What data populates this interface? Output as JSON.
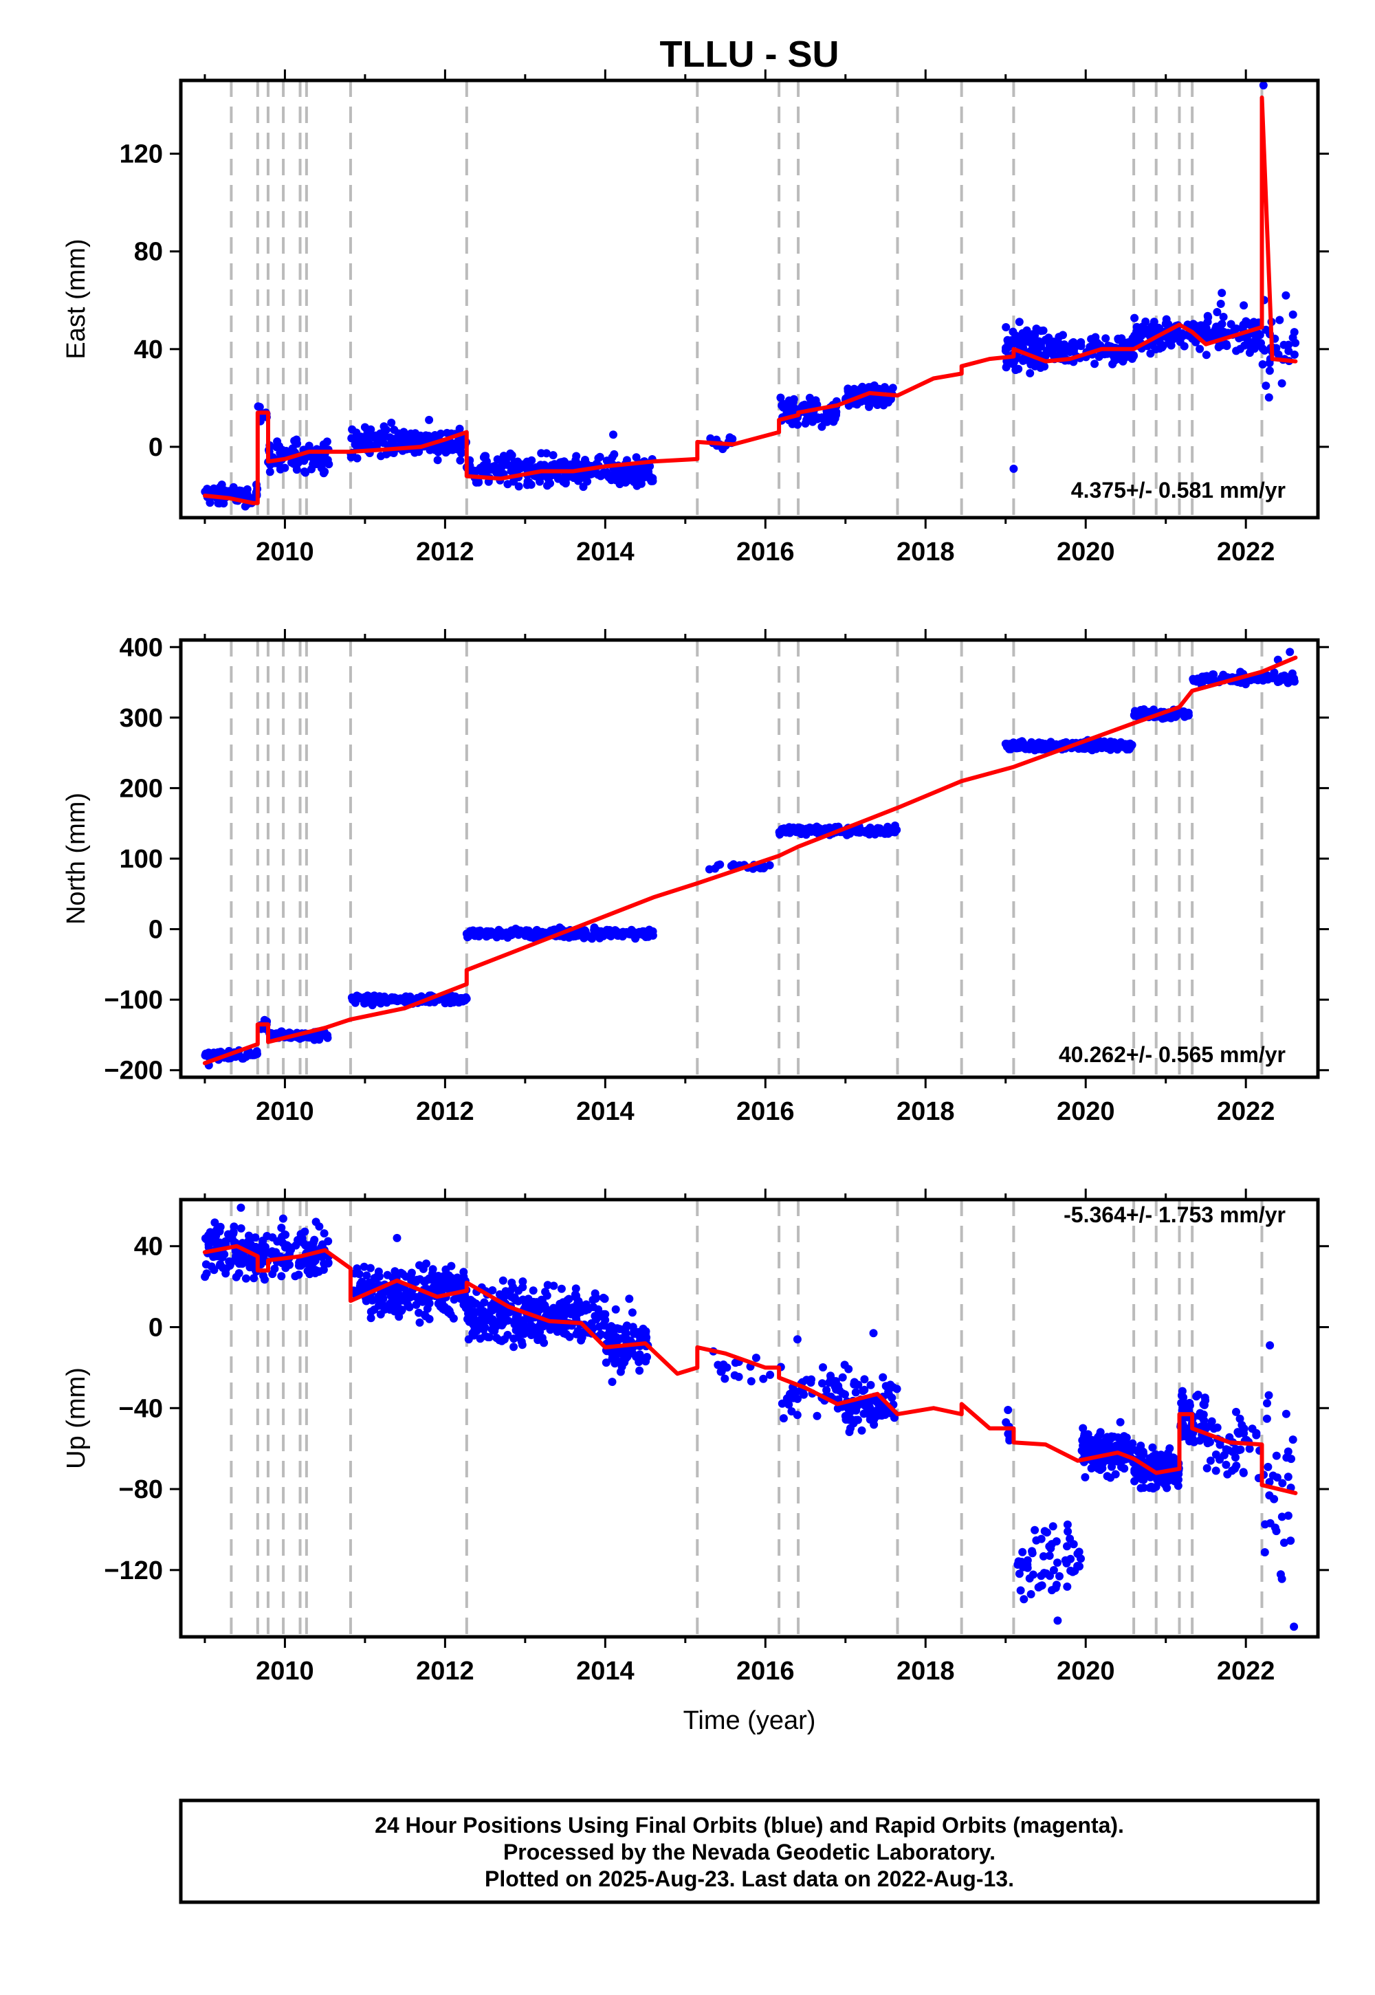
{
  "title": "TLLU - SU",
  "xlabel": "Time (year)",
  "x_tick_labels": [
    "2010",
    "2012",
    "2014",
    "2016",
    "2018",
    "2020",
    "2022"
  ],
  "footer": {
    "line1": "24 Hour Positions Using Final Orbits (blue) and Rapid Orbits (magenta).",
    "line2": "Processed by the Nevada Geodetic Laboratory.",
    "line3": "Plotted on 2025-Aug-23. Last data on 2022-Aug-13."
  },
  "colors": {
    "observations": "#0000ff",
    "model": "#ff0000",
    "steps": "#bbbbbb",
    "frame": "#000000"
  },
  "chart_data": [
    {
      "type": "scatter",
      "ylabel": "East (mm)",
      "rate_text": "4.375+/- 0.581 mm/yr",
      "xlim": [
        2008.7,
        2022.9
      ],
      "ylim": [
        -29,
        150
      ],
      "yticks": [
        0,
        40,
        80,
        120
      ],
      "ytick_labels": [
        "0",
        "40",
        "80",
        "120"
      ],
      "grid": false,
      "step_lines": [
        2009.33,
        2009.66,
        2009.79,
        2009.98,
        2010.19,
        2010.27,
        2010.82,
        2012.27,
        2015.15,
        2016.17,
        2016.41,
        2017.65,
        2018.45,
        2019.1,
        2020.6,
        2020.88,
        2021.17,
        2021.33,
        2022.2
      ],
      "model_line": [
        [
          2009.0,
          -20
        ],
        [
          2009.3,
          -21
        ],
        [
          2009.6,
          -23
        ],
        [
          2009.66,
          -23
        ],
        [
          2009.66,
          14
        ],
        [
          2009.79,
          14
        ],
        [
          2009.79,
          -6
        ],
        [
          2010.0,
          -5
        ],
        [
          2010.3,
          -2
        ],
        [
          2010.82,
          -2
        ],
        [
          2011.3,
          -1
        ],
        [
          2011.7,
          0
        ],
        [
          2012.0,
          3
        ],
        [
          2012.27,
          6
        ],
        [
          2012.27,
          -12
        ],
        [
          2012.7,
          -13
        ],
        [
          2013.2,
          -10
        ],
        [
          2013.6,
          -10
        ],
        [
          2014.0,
          -8
        ],
        [
          2014.6,
          -6
        ],
        [
          2015.15,
          -5
        ],
        [
          2015.15,
          2
        ],
        [
          2015.6,
          1
        ],
        [
          2016.17,
          6
        ],
        [
          2016.17,
          11
        ],
        [
          2016.41,
          13
        ],
        [
          2016.41,
          14
        ],
        [
          2016.9,
          17
        ],
        [
          2017.3,
          22
        ],
        [
          2017.65,
          21
        ],
        [
          2018.1,
          28
        ],
        [
          2018.45,
          30
        ],
        [
          2018.45,
          33
        ],
        [
          2018.8,
          36
        ],
        [
          2019.1,
          37
        ],
        [
          2019.1,
          40
        ],
        [
          2019.5,
          35
        ],
        [
          2019.8,
          36
        ],
        [
          2020.2,
          40
        ],
        [
          2020.6,
          40
        ],
        [
          2020.88,
          45
        ],
        [
          2021.17,
          50
        ],
        [
          2021.33,
          47
        ],
        [
          2021.5,
          42
        ],
        [
          2021.8,
          45
        ],
        [
          2022.2,
          49
        ],
        [
          2022.2,
          143
        ],
        [
          2022.33,
          36
        ],
        [
          2022.62,
          35
        ]
      ],
      "scatter_clusters": [
        {
          "x": [
            2009.0,
            2009.66
          ],
          "center": -20,
          "spread": 2.0,
          "count": 70
        },
        {
          "x": [
            2009.66,
            2009.79
          ],
          "center": 15,
          "spread": 2.0,
          "count": 12
        },
        {
          "x": [
            2009.79,
            2010.55
          ],
          "center": -4,
          "spread": 3.0,
          "count": 100
        },
        {
          "x": [
            2010.82,
            2012.27
          ],
          "center": 2,
          "spread": 3.0,
          "count": 180
        },
        {
          "x": [
            2012.27,
            2014.6
          ],
          "center": -10,
          "spread": 3.0,
          "count": 300
        },
        {
          "x": [
            2015.3,
            2015.6
          ],
          "center": 2,
          "spread": 2.0,
          "count": 12
        },
        {
          "x": [
            2016.17,
            2016.9
          ],
          "center": 14,
          "spread": 2.5,
          "count": 80
        },
        {
          "x": [
            2017.0,
            2017.6
          ],
          "center": 21,
          "spread": 2.0,
          "count": 80
        },
        {
          "x": [
            2019.0,
            2019.5
          ],
          "center": 40,
          "spread": 5.0,
          "count": 90
        },
        {
          "x": [
            2019.5,
            2020.6
          ],
          "center": 40,
          "spread": 3.0,
          "count": 120
        },
        {
          "x": [
            2020.6,
            2021.5
          ],
          "center": 46,
          "spread": 3.0,
          "count": 110
        },
        {
          "x": [
            2021.5,
            2022.15
          ],
          "center": 47,
          "spread": 4.0,
          "count": 70
        },
        {
          "x": [
            2022.15,
            2022.62
          ],
          "center": 40,
          "spread": 8.0,
          "count": 35
        }
      ],
      "scatter_outliers": [
        [
          2019.1,
          -9
        ],
        [
          2021.7,
          63
        ],
        [
          2022.22,
          148
        ],
        [
          2022.5,
          62
        ],
        [
          2022.25,
          25
        ],
        [
          2011.0,
          8
        ],
        [
          2011.8,
          11
        ],
        [
          2014.1,
          5
        ],
        [
          2022.45,
          26
        ]
      ]
    },
    {
      "type": "scatter",
      "ylabel": "North (mm)",
      "rate_text": "40.262+/- 0.565 mm/yr",
      "xlim": [
        2008.7,
        2022.9
      ],
      "ylim": [
        -210,
        410
      ],
      "yticks": [
        -200,
        -100,
        0,
        100,
        200,
        300,
        400
      ],
      "ytick_labels": [
        "−200",
        "−100",
        "0",
        "100",
        "200",
        "300",
        "400"
      ],
      "grid": false,
      "step_lines": [
        2009.33,
        2009.66,
        2009.79,
        2009.98,
        2010.19,
        2010.27,
        2010.82,
        2012.27,
        2015.15,
        2016.17,
        2016.41,
        2017.65,
        2018.45,
        2019.1,
        2020.6,
        2020.88,
        2021.17,
        2021.33,
        2022.2
      ],
      "model_line": [
        [
          2009.0,
          -190
        ],
        [
          2009.66,
          -163
        ],
        [
          2009.66,
          -135
        ],
        [
          2009.79,
          -135
        ],
        [
          2009.79,
          -160
        ],
        [
          2010.5,
          -140
        ],
        [
          2010.82,
          -128
        ],
        [
          2011.5,
          -112
        ],
        [
          2012.27,
          -78
        ],
        [
          2012.27,
          -58
        ],
        [
          2014.6,
          45
        ],
        [
          2015.15,
          65
        ],
        [
          2016.17,
          104
        ],
        [
          2016.41,
          117
        ],
        [
          2017.65,
          172
        ],
        [
          2018.45,
          210
        ],
        [
          2019.1,
          230
        ],
        [
          2020.6,
          292
        ],
        [
          2021.17,
          315
        ],
        [
          2021.33,
          338
        ],
        [
          2022.2,
          365
        ],
        [
          2022.62,
          385
        ]
      ],
      "scatter_clusters": [
        {
          "x": [
            2009.0,
            2009.66
          ],
          "center": -178,
          "spread": 3.0,
          "count": 60
        },
        {
          "x": [
            2009.66,
            2009.79
          ],
          "center": -136,
          "spread": 3.0,
          "count": 10
        },
        {
          "x": [
            2009.79,
            2010.55
          ],
          "center": -150,
          "spread": 3.0,
          "count": 80
        },
        {
          "x": [
            2010.82,
            2012.27
          ],
          "center": -100,
          "spread": 3.0,
          "count": 150
        },
        {
          "x": [
            2012.27,
            2014.6
          ],
          "center": -6,
          "spread": 3.0,
          "count": 280
        },
        {
          "x": [
            2015.3,
            2016.17
          ],
          "center": 88,
          "spread": 3.0,
          "count": 25
        },
        {
          "x": [
            2016.17,
            2017.65
          ],
          "center": 140,
          "spread": 3.0,
          "count": 160
        },
        {
          "x": [
            2019.0,
            2020.6
          ],
          "center": 260,
          "spread": 3.0,
          "count": 200
        },
        {
          "x": [
            2020.6,
            2021.33
          ],
          "center": 305,
          "spread": 3.0,
          "count": 100
        },
        {
          "x": [
            2021.33,
            2022.62
          ],
          "center": 355,
          "spread": 4.0,
          "count": 120
        }
      ],
      "scatter_outliers": [
        [
          2022.55,
          393
        ],
        [
          2009.05,
          -193
        ],
        [
          2022.4,
          382
        ]
      ]
    },
    {
      "type": "scatter",
      "ylabel": "Up (mm)",
      "rate_text": "-5.364+/- 1.753 mm/yr",
      "xlim": [
        2008.7,
        2022.9
      ],
      "ylim": [
        -153,
        63
      ],
      "yticks": [
        -120,
        -80,
        -40,
        0,
        40
      ],
      "ytick_labels": [
        "−120",
        "−80",
        "−40",
        "0",
        "40"
      ],
      "grid": false,
      "step_lines": [
        2009.33,
        2009.66,
        2009.79,
        2009.98,
        2010.19,
        2010.27,
        2010.82,
        2012.27,
        2015.15,
        2016.17,
        2016.41,
        2017.65,
        2018.45,
        2019.1,
        2020.6,
        2020.88,
        2021.17,
        2021.33,
        2022.2
      ],
      "model_line": [
        [
          2009.0,
          37
        ],
        [
          2009.4,
          40
        ],
        [
          2009.66,
          35
        ],
        [
          2009.66,
          28
        ],
        [
          2009.79,
          28
        ],
        [
          2009.79,
          33
        ],
        [
          2010.2,
          35
        ],
        [
          2010.5,
          38
        ],
        [
          2010.82,
          29
        ],
        [
          2010.82,
          13
        ],
        [
          2011.4,
          23
        ],
        [
          2011.9,
          15
        ],
        [
          2012.27,
          18
        ],
        [
          2012.27,
          22
        ],
        [
          2012.8,
          10
        ],
        [
          2013.3,
          3
        ],
        [
          2013.7,
          2
        ],
        [
          2014.0,
          -10
        ],
        [
          2014.5,
          -8
        ],
        [
          2014.9,
          -23
        ],
        [
          2015.15,
          -20
        ],
        [
          2015.15,
          -10
        ],
        [
          2015.5,
          -13
        ],
        [
          2016.0,
          -20
        ],
        [
          2016.17,
          -20
        ],
        [
          2016.17,
          -25
        ],
        [
          2016.5,
          -30
        ],
        [
          2016.9,
          -38
        ],
        [
          2017.4,
          -33
        ],
        [
          2017.65,
          -43
        ],
        [
          2018.1,
          -40
        ],
        [
          2018.45,
          -43
        ],
        [
          2018.45,
          -38
        ],
        [
          2018.8,
          -50
        ],
        [
          2019.1,
          -50
        ],
        [
          2019.1,
          -57
        ],
        [
          2019.5,
          -58
        ],
        [
          2019.9,
          -66
        ],
        [
          2020.4,
          -62
        ],
        [
          2020.6,
          -65
        ],
        [
          2020.88,
          -72
        ],
        [
          2021.17,
          -70
        ],
        [
          2021.17,
          -43
        ],
        [
          2021.33,
          -43
        ],
        [
          2021.33,
          -50
        ],
        [
          2021.8,
          -57
        ],
        [
          2022.2,
          -58
        ],
        [
          2022.2,
          -78
        ],
        [
          2022.62,
          -82
        ]
      ],
      "scatter_clusters": [
        {
          "x": [
            2009.0,
            2009.66
          ],
          "center": 37,
          "spread": 6.0,
          "count": 120
        },
        {
          "x": [
            2009.66,
            2010.55
          ],
          "center": 36,
          "spread": 6.0,
          "count": 120
        },
        {
          "x": [
            2010.82,
            2012.27
          ],
          "center": 18,
          "spread": 6.0,
          "count": 220
        },
        {
          "x": [
            2012.27,
            2014.0
          ],
          "center": 6,
          "spread": 7.0,
          "count": 300
        },
        {
          "x": [
            2014.0,
            2014.55
          ],
          "center": -8,
          "spread": 7.0,
          "count": 100
        },
        {
          "x": [
            2015.3,
            2016.17
          ],
          "center": -20,
          "spread": 5.0,
          "count": 15
        },
        {
          "x": [
            2016.17,
            2017.0
          ],
          "center": -32,
          "spread": 6.0,
          "count": 50
        },
        {
          "x": [
            2017.0,
            2017.65
          ],
          "center": -38,
          "spread": 6.0,
          "count": 80
        },
        {
          "x": [
            2019.0,
            2019.1
          ],
          "center": -48,
          "spread": 4.0,
          "count": 8
        },
        {
          "x": [
            2019.1,
            2019.95
          ],
          "center": -115,
          "spread": 10.0,
          "count": 60
        },
        {
          "x": [
            2019.95,
            2020.6
          ],
          "center": -62,
          "spread": 5.0,
          "count": 150
        },
        {
          "x": [
            2020.6,
            2021.17
          ],
          "center": -70,
          "spread": 5.0,
          "count": 120
        },
        {
          "x": [
            2021.17,
            2021.5
          ],
          "center": -45,
          "spread": 7.0,
          "count": 60
        },
        {
          "x": [
            2021.5,
            2022.2
          ],
          "center": -60,
          "spread": 10.0,
          "count": 50
        },
        {
          "x": [
            2022.2,
            2022.62
          ],
          "center": -80,
          "spread": 22.0,
          "count": 30
        }
      ],
      "scatter_outliers": [
        [
          2009.45,
          59
        ],
        [
          2019.65,
          -145
        ],
        [
          2022.6,
          -148
        ],
        [
          2022.3,
          -9
        ],
        [
          2016.4,
          -6
        ],
        [
          2017.35,
          -3
        ],
        [
          2015.35,
          -12
        ],
        [
          2014.3,
          14
        ],
        [
          2010.9,
          29
        ],
        [
          2011.4,
          44
        ]
      ]
    }
  ]
}
